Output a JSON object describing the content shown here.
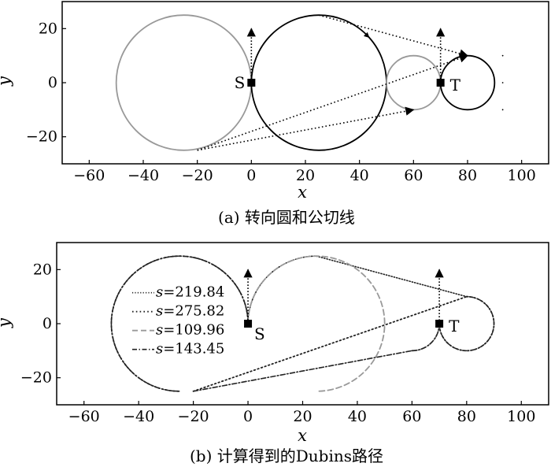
{
  "chart_data": [
    {
      "type": "line",
      "caption": "(a) 转向圆和公切线",
      "xlabel": "x",
      "ylabel": "y",
      "xlim": [
        -70,
        110
      ],
      "ylim": [
        -30,
        30
      ],
      "xticks": [
        -60,
        -40,
        -20,
        0,
        20,
        40,
        60,
        80,
        100
      ],
      "yticks": [
        -20,
        0,
        20
      ],
      "xtick_labels": [
        "−60",
        "−40",
        "−20",
        "0",
        "20",
        "40",
        "60",
        "80",
        "100"
      ],
      "ytick_labels": [
        "−20",
        "0",
        "20"
      ],
      "circles": [
        {
          "cx": -25,
          "cy": 0,
          "r": 25,
          "color": "#999999"
        },
        {
          "cx": 25,
          "cy": 0,
          "r": 25,
          "color": "#000000"
        },
        {
          "cx": 60,
          "cy": 0,
          "r": 10,
          "color": "#999999"
        },
        {
          "cx": 80,
          "cy": 0,
          "r": 10,
          "color": "#000000"
        }
      ],
      "tangent_lines": [
        {
          "x": [
            25,
            80
          ],
          "y": [
            25,
            10
          ]
        },
        {
          "x": [
            -20,
            80
          ],
          "y": [
            -25,
            10
          ]
        },
        {
          "x": [
            -20,
            60
          ],
          "y": [
            -25,
            -10
          ]
        }
      ],
      "points": [
        {
          "label": "S",
          "x": 0,
          "y": 0
        },
        {
          "label": "T",
          "x": 70,
          "y": 0
        }
      ],
      "heading_arrows": [
        {
          "x": 0,
          "y0": 0,
          "y1": 20
        },
        {
          "x": 70,
          "y0": 0,
          "y1": 20
        }
      ],
      "grid": false
    },
    {
      "type": "line",
      "caption": "(b) 计算得到的Dubins路径",
      "xlabel": "x",
      "ylabel": "y",
      "xlim": [
        -70,
        110
      ],
      "ylim": [
        -30,
        30
      ],
      "xticks": [
        -60,
        -40,
        -20,
        0,
        20,
        40,
        60,
        80,
        100
      ],
      "yticks": [
        -20,
        0,
        20
      ],
      "xtick_labels": [
        "−60",
        "−40",
        "−20",
        "0",
        "20",
        "40",
        "60",
        "80",
        "100"
      ],
      "ytick_labels": [
        "−20",
        "0",
        "20"
      ],
      "legend_position": "left",
      "series": [
        {
          "name": "s=219.84",
          "style": "dotted-fine",
          "color": "#222222",
          "segments": [
            {
              "kind": "arc",
              "cx": 25,
              "cy": 0,
              "r": 25,
              "from_deg": 180,
              "to_deg": 90,
              "dir": "cw"
            },
            {
              "kind": "line",
              "x": [
                25,
                80
              ],
              "y": [
                25,
                10
              ]
            },
            {
              "kind": "arc",
              "cx": 80,
              "cy": 0,
              "r": 10,
              "from_deg": 90,
              "to_deg": 180,
              "dir": "cw"
            }
          ]
        },
        {
          "name": "s=275.82",
          "style": "dotted",
          "color": "#222222",
          "segments": [
            {
              "kind": "arc",
              "cx": -25,
              "cy": 0,
              "r": 25,
              "from_deg": 0,
              "to_deg": 270,
              "dir": "ccw"
            },
            {
              "kind": "line",
              "x": [
                -20,
                80
              ],
              "y": [
                -25,
                10
              ]
            },
            {
              "kind": "arc",
              "cx": 80,
              "cy": 0,
              "r": 10,
              "from_deg": 90,
              "to_deg": 180,
              "dir": "cw"
            }
          ]
        },
        {
          "name": "s=109.96",
          "style": "dashed",
          "color": "#999999",
          "segments": [
            {
              "kind": "arc",
              "cx": 25,
              "cy": 0,
              "r": 25,
              "from_deg": 180,
              "to_deg": 270,
              "dir": "cw"
            },
            {
              "kind": "arc",
              "cx": 60,
              "cy": 0,
              "r": 10,
              "from_deg": 270,
              "to_deg": 0,
              "dir": "ccw"
            }
          ]
        },
        {
          "name": "s=143.45",
          "style": "dashdot",
          "color": "#222222",
          "segments": [
            {
              "kind": "arc",
              "cx": -25,
              "cy": 0,
              "r": 25,
              "from_deg": 0,
              "to_deg": 270,
              "dir": "ccw"
            },
            {
              "kind": "line",
              "x": [
                -20,
                60
              ],
              "y": [
                -25,
                -10
              ]
            },
            {
              "kind": "arc",
              "cx": 60,
              "cy": 0,
              "r": 10,
              "from_deg": 270,
              "to_deg": 0,
              "dir": "ccw"
            }
          ]
        }
      ],
      "points": [
        {
          "label": "S",
          "x": 0,
          "y": 0
        },
        {
          "label": "T",
          "x": 70,
          "y": 0
        }
      ],
      "heading_arrows": [
        {
          "x": 0,
          "y0": 0,
          "y1": 20
        },
        {
          "x": 70,
          "y0": 0,
          "y1": 20
        }
      ],
      "grid": false
    }
  ]
}
